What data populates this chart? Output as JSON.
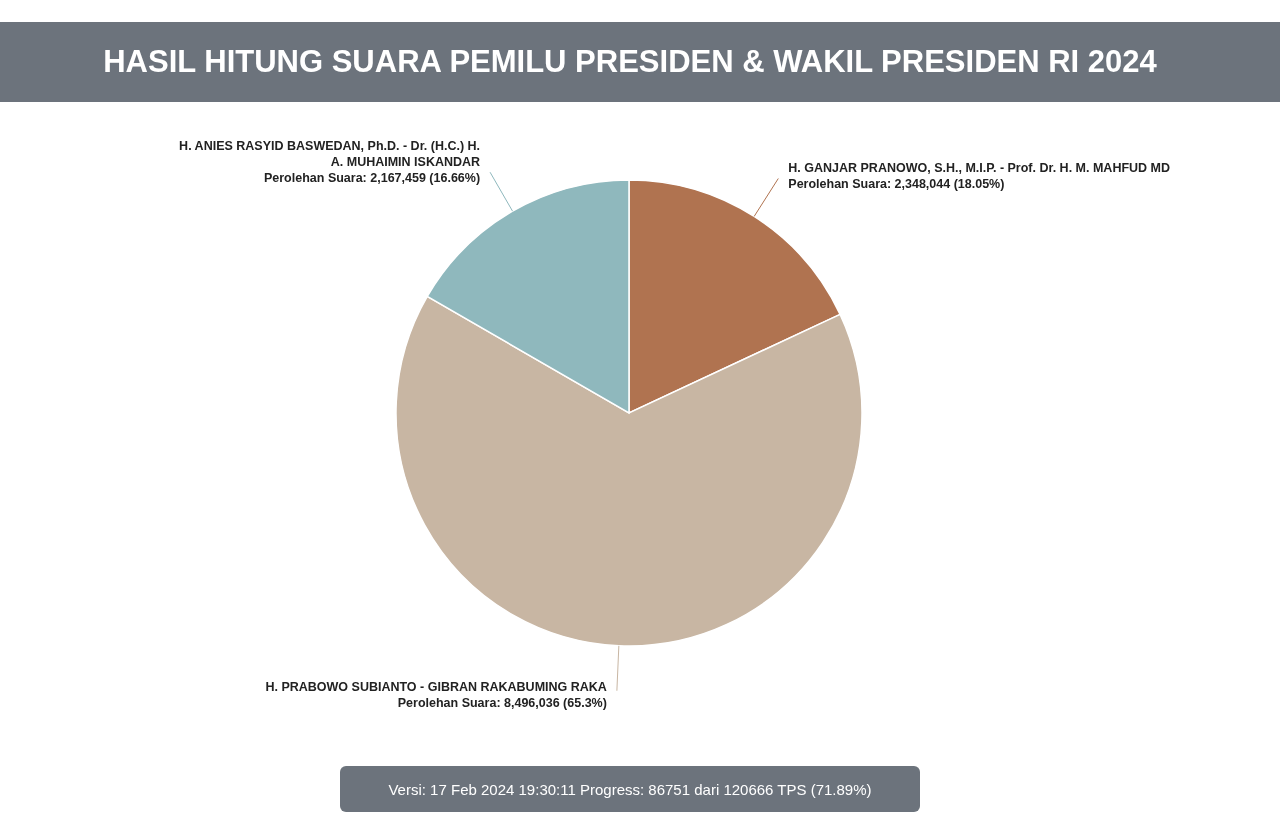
{
  "chart_data": {
    "type": "pie",
    "title": "HASIL HITUNG SUARA PEMILU PRESIDEN & WAKIL PRESIDEN RI 2024",
    "categories": [
      "H. GANJAR PRANOWO, S.H., M.I.P. - Prof. Dr. H. M. MAHFUD MD",
      "H. PRABOWO SUBIANTO - GIBRAN RAKABUMING RAKA",
      "H. ANIES RASYID BASWEDAN, Ph.D. - Dr. (H.C.) H. A. MUHAIMIN ISKANDAR"
    ],
    "values": [
      2348044,
      8496036,
      2167459
    ],
    "colors": [
      "#b07350",
      "#c8b6a3",
      "#8fb8bd"
    ],
    "value_labels": [
      "Perolehan Suara: 2,348,044 (18.05%)",
      "Perolehan Suara: 8,496,036 (65.3%)",
      "Perolehan Suara: 2,167,459 (16.66%)"
    ],
    "annotations": [
      "Versi: 17 Feb 2024 19:30:11 Progress: 86751 dari 120666 TPS (71.89%)"
    ]
  }
}
